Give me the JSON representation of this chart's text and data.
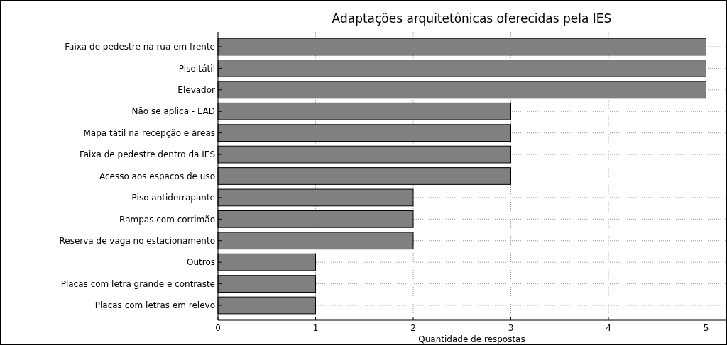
{
  "chart_data": {
    "type": "bar",
    "orientation": "horizontal",
    "title": "Adaptações arquitetônicas oferecidas pela IES",
    "xlabel": "Quantidade de respostas",
    "categories": [
      "Faixa de pedestre na rua em frente",
      "Piso tátil",
      "Elevador",
      "Não se aplica - EAD",
      "Mapa tátil na recepção e áreas",
      "Faixa de pedestre dentro da IES",
      "Acesso aos espaços de uso",
      "Piso antiderrapante",
      "Rampas com corrimão",
      "Reserva de vaga no estacionamento",
      "Outros",
      "Placas com letra grande e contraste",
      "Placas com letras em relevo"
    ],
    "values": [
      5,
      5,
      5,
      3,
      3,
      3,
      3,
      2,
      2,
      2,
      1,
      1,
      1
    ],
    "color": "#808080",
    "xlim": [
      0,
      5.2
    ],
    "xticks": [
      0,
      1,
      2,
      3,
      4,
      5
    ],
    "grid": true
  }
}
